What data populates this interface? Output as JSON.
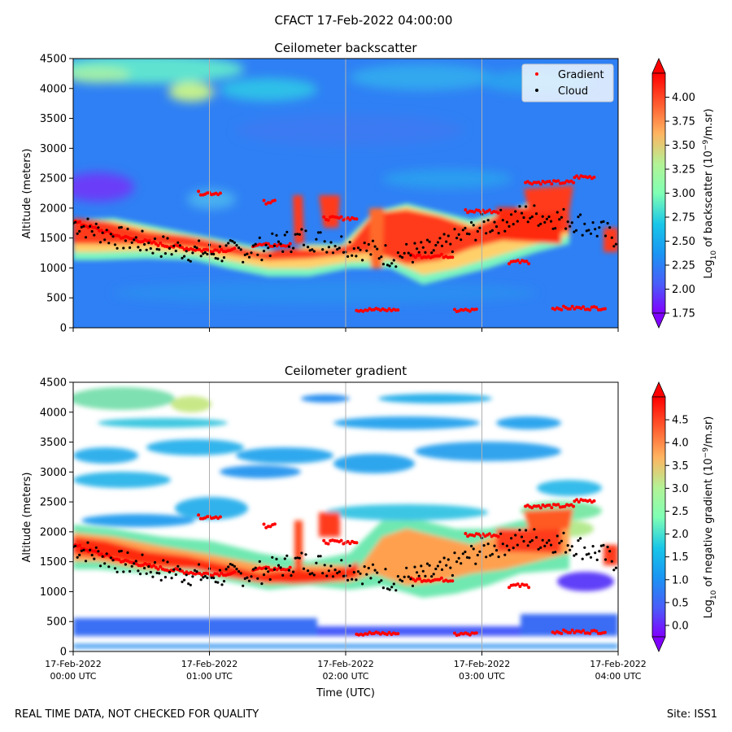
{
  "suptitle": "CFACT 17-Feb-2022 04:00:00",
  "footer": {
    "left": "REAL TIME DATA, NOT CHECKED FOR QUALITY",
    "right": "Site: ISS1"
  },
  "chart_data": [
    {
      "type": "heatmap",
      "title": "Ceilometer backscatter",
      "xlabel": "",
      "ylabel": "Altitude (meters)",
      "ylim": [
        0,
        4500
      ],
      "xlim_hours": [
        0,
        4
      ],
      "yticks": [
        "0",
        "500",
        "1000",
        "1500",
        "2000",
        "2500",
        "3000",
        "3500",
        "4000",
        "4500"
      ],
      "colorbar": {
        "label_html": "Log<tspan baseline-shift='sub' font-size='9'>10</tspan> of backscatter (10<tspan baseline-shift='super' font-size='9'>−9</tspan>/m.sr)",
        "range": [
          1.75,
          4.25
        ],
        "ticks": [
          "1.75",
          "2.00",
          "2.25",
          "2.50",
          "2.75",
          "3.00",
          "3.25",
          "3.50",
          "3.75",
          "4.00"
        ]
      },
      "legend": {
        "position": "top-right",
        "entries": [
          "Gradient",
          "Cloud"
        ]
      },
      "layers": {
        "cloud_band_altitude_m": [
          1750,
          1500,
          1350,
          1250,
          1300,
          1500,
          1400,
          1200,
          1300,
          1700,
          1900,
          1800,
          1500
        ]
      }
    },
    {
      "type": "heatmap",
      "title": "Ceilometer gradient",
      "xlabel": "Time (UTC)",
      "ylabel": "Altitude (meters)",
      "ylim": [
        0,
        4500
      ],
      "xlim_hours": [
        0,
        4
      ],
      "yticks": [
        "0",
        "500",
        "1000",
        "1500",
        "2000",
        "2500",
        "3000",
        "3500",
        "4000",
        "4500"
      ],
      "xticks": [
        {
          "date": "17-Feb-2022",
          "time": "00:00 UTC"
        },
        {
          "date": "17-Feb-2022",
          "time": "01:00 UTC"
        },
        {
          "date": "17-Feb-2022",
          "time": "02:00 UTC"
        },
        {
          "date": "17-Feb-2022",
          "time": "03:00 UTC"
        },
        {
          "date": "17-Feb-2022",
          "time": "04:00 UTC"
        }
      ],
      "colorbar": {
        "label_html": "Log<tspan baseline-shift='sub' font-size='9'>10</tspan> of negative gradient (10<tspan baseline-shift='super' font-size='9'>−9</tspan>/m.sr)",
        "range": [
          -0.25,
          5.0
        ],
        "ticks": [
          "0.0",
          "0.5",
          "1.0",
          "1.5",
          "2.0",
          "2.5",
          "3.0",
          "3.5",
          "4.0",
          "4.5"
        ]
      }
    }
  ]
}
